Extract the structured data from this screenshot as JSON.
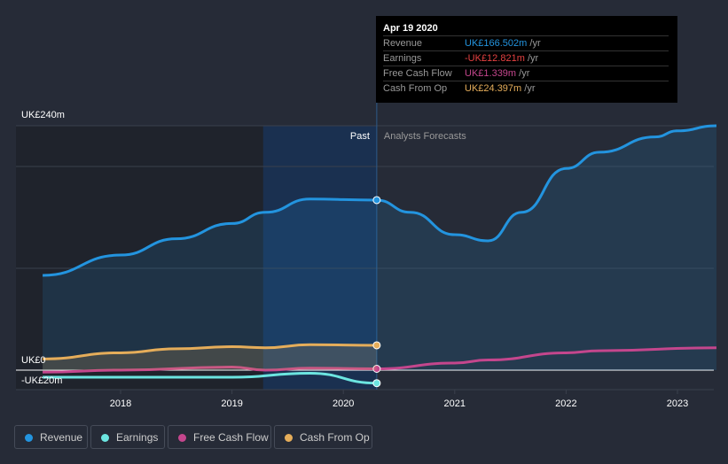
{
  "chart_data": {
    "type": "line",
    "y_unit": "UK£m",
    "ylim": [
      -20,
      240
    ],
    "y_tick_labels": [
      "UK£240m",
      "UK£0",
      "-UK£20m"
    ],
    "x_tick_labels": [
      "2018",
      "2019",
      "2020",
      "2021",
      "2022",
      "2023"
    ],
    "x_ticks": [
      2018,
      2019,
      2020,
      2021,
      2022,
      2023
    ],
    "xlim": [
      2017.1,
      2023.35
    ],
    "past_label": "Past",
    "forecast_label": "Analysts Forecasts",
    "past_shade_start": 2019.28,
    "divider_x": 2020.3,
    "series": [
      {
        "name": "Revenue",
        "color": "#2394df",
        "fill": true,
        "x": [
          2017.3,
          2018,
          2018.5,
          2019,
          2019.3,
          2019.7,
          2020.3,
          2020.6,
          2021,
          2021.3,
          2021.6,
          2022,
          2022.3,
          2022.8,
          2023,
          2023.35
        ],
        "y": [
          93,
          113,
          129,
          144,
          155,
          168,
          167,
          155,
          133,
          127,
          155,
          198,
          214,
          229,
          235,
          240
        ]
      },
      {
        "name": "Earnings",
        "color": "#6ce5e0",
        "fill": false,
        "x": [
          2017.3,
          2018,
          2019,
          2019.7,
          2020.3
        ],
        "y": [
          -7,
          -7,
          -7,
          -3,
          -12.8
        ]
      },
      {
        "name": "Free Cash Flow",
        "color": "#c4468d",
        "fill": false,
        "x": [
          2017.3,
          2018,
          2019,
          2019.3,
          2019.7,
          2020.3,
          2021,
          2021.3,
          2022,
          2022.3,
          2023.35
        ],
        "y": [
          -2,
          0,
          3,
          0,
          2,
          1.3,
          7,
          10,
          17,
          19,
          22
        ]
      },
      {
        "name": "Cash From Op",
        "color": "#e5ad5a",
        "fill": true,
        "x": [
          2017.3,
          2018,
          2018.5,
          2019,
          2019.3,
          2019.7,
          2020.3
        ],
        "y": [
          11,
          17,
          21,
          23,
          22,
          25,
          24.4
        ]
      }
    ]
  },
  "tooltip": {
    "date": "Apr 19 2020",
    "rows": [
      {
        "label": "Revenue",
        "value": "UK£166.502m",
        "unit": "/yr",
        "color": "#2394df"
      },
      {
        "label": "Earnings",
        "value": "-UK£12.821m",
        "unit": "/yr",
        "color": "#e64141"
      },
      {
        "label": "Free Cash Flow",
        "value": "UK£1.339m",
        "unit": "/yr",
        "color": "#c4468d"
      },
      {
        "label": "Cash From Op",
        "value": "UK£24.397m",
        "unit": "/yr",
        "color": "#e5ad5a"
      }
    ]
  },
  "legend": [
    "Revenue",
    "Earnings",
    "Free Cash Flow",
    "Cash From Op"
  ]
}
